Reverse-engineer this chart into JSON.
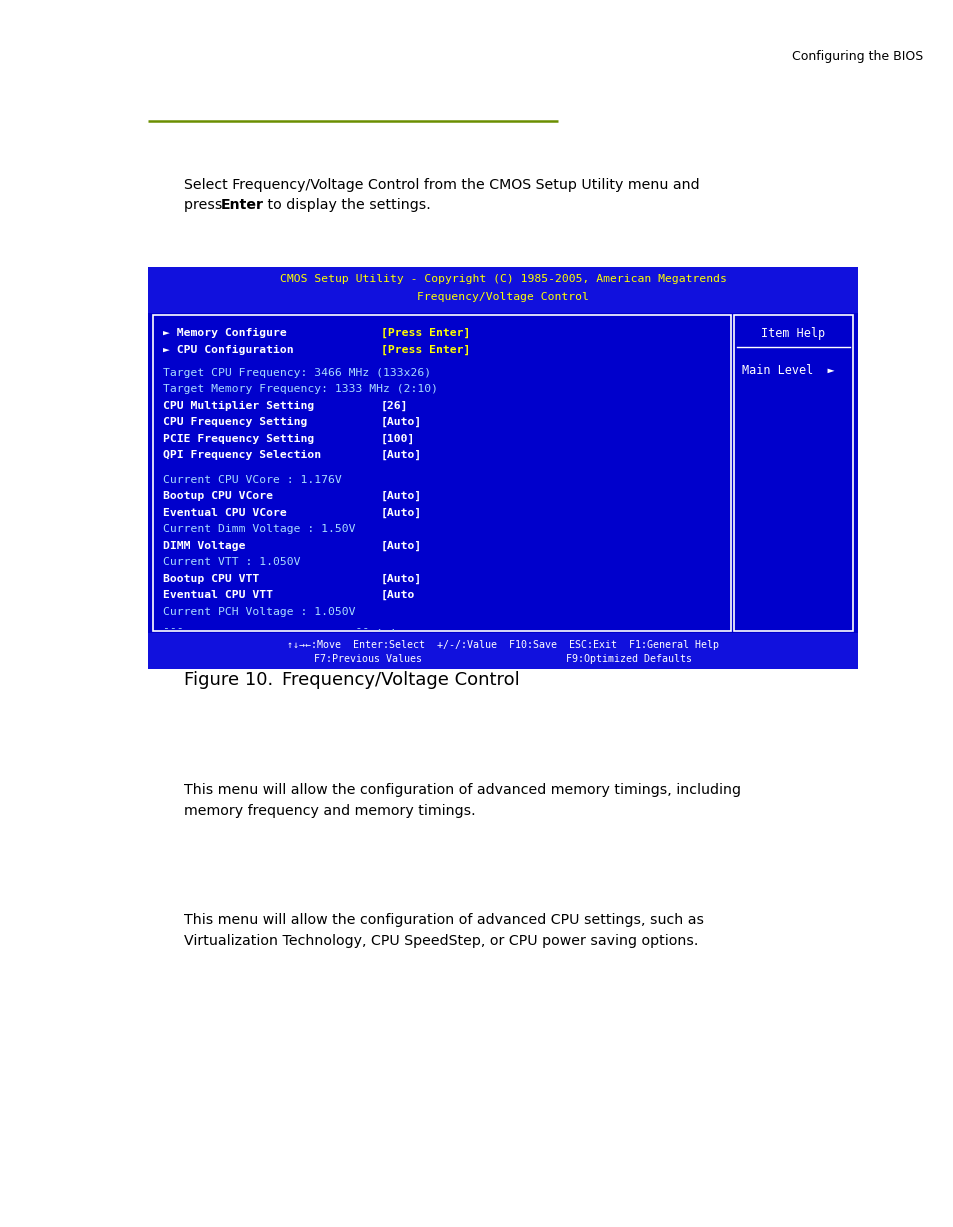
{
  "page_header": "Configuring the BIOS",
  "green_line_color": "#6b8e00",
  "bios_yellow": "#ffff00",
  "bios_white": "#ffffff",
  "bios_cyan": "#aaaaff",
  "bios_blue": "#0000cc",
  "bios_header_line1": "CMOS Setup Utility - Copyright (C) 1985-2005, American Megatrends",
  "bios_header_line2": "Frequency/Voltage Control",
  "item_help_title": "Item Help",
  "main_level_text": "Main Level",
  "main_level_arrow": "►",
  "footer_line1": "↑↓→←:Move  Enter:Select  +/-/:Value  F10:Save  ESC:Exit  F1:General Help",
  "footer_line2": "F7:Previous Values                        F9:Optimized Defaults",
  "figure_label": "Figure 10.",
  "figure_title": "Frequency/Voltage Control"
}
